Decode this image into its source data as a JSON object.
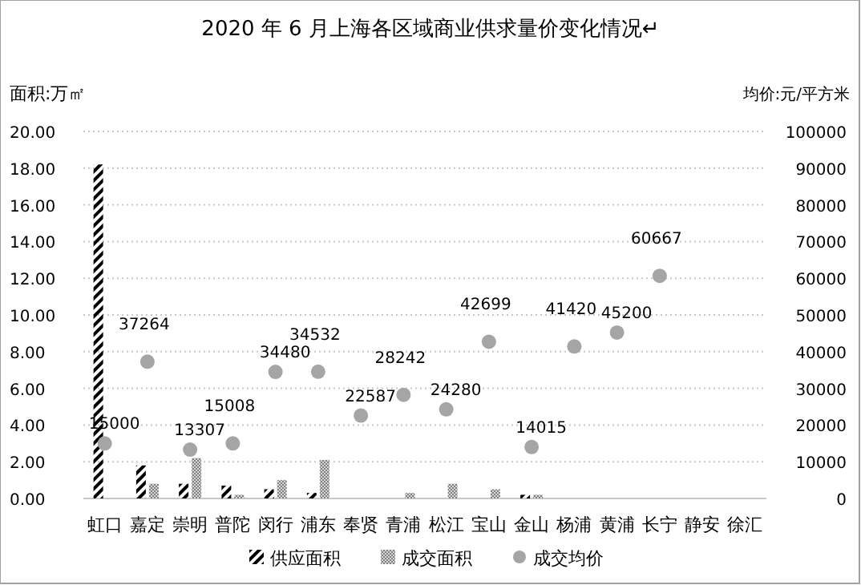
{
  "chart_data": {
    "type": "bar",
    "title": "2020 年 6 月上海各区域商业供求量价变化情况↵",
    "ylabel": "面积:万㎡",
    "y2label": "均价:元/平方米",
    "categories": [
      "虹口",
      "嘉定",
      "崇明",
      "普陀",
      "闵行",
      "浦东",
      "奉贤",
      "青浦",
      "松江",
      "宝山",
      "金山",
      "杨浦",
      "黄浦",
      "长宁",
      "静安",
      "徐汇"
    ],
    "series": [
      {
        "name": "供应面积",
        "color": "#000000",
        "values": [
          18.2,
          1.8,
          0.8,
          0.7,
          0.5,
          0.3,
          0,
          0,
          0,
          0,
          0.2,
          0,
          0,
          0,
          0,
          0
        ]
      },
      {
        "name": "成交面积",
        "color": "#808080",
        "values": [
          0,
          0.8,
          2.2,
          0.2,
          1.0,
          2.1,
          0,
          0.3,
          0.8,
          0.5,
          0.2,
          0,
          0,
          0,
          0,
          0
        ]
      },
      {
        "name": "成交均价",
        "type": "scatter",
        "axis": "y2",
        "color": "#a5a5a5",
        "values": [
          15000,
          37264,
          13307,
          15008,
          34480,
          34532,
          22587,
          28242,
          24280,
          42699,
          14015,
          41420,
          45200,
          60667,
          null,
          null
        ],
        "value_labels": [
          "15000",
          "37264",
          "13307",
          "15008",
          "34480",
          "34532",
          "22587",
          "28242",
          "24280",
          "42699",
          "14015",
          "41420",
          "45200",
          "60667",
          null,
          null
        ]
      }
    ],
    "ylim": [
      0,
      20
    ],
    "yticks": [
      {
        "value": 0,
        "label": "0.00"
      },
      {
        "value": 2,
        "label": "2.00"
      },
      {
        "value": 4,
        "label": "4.00"
      },
      {
        "value": 6,
        "label": "6.00"
      },
      {
        "value": 8,
        "label": "8.00"
      },
      {
        "value": 10,
        "label": "10.00"
      },
      {
        "value": 12,
        "label": "12.00"
      },
      {
        "value": 14,
        "label": "14.00"
      },
      {
        "value": 16,
        "label": "16.00"
      },
      {
        "value": 18,
        "label": "18.00"
      },
      {
        "value": 20,
        "label": "20.00"
      }
    ],
    "y2lim": [
      0,
      100000
    ],
    "y2ticks": [
      0,
      10000,
      20000,
      30000,
      40000,
      50000,
      60000,
      70000,
      80000,
      90000,
      100000
    ],
    "grid": "y",
    "legend": "bottom",
    "marker": "circle"
  }
}
